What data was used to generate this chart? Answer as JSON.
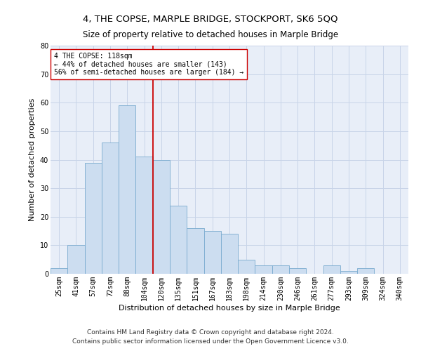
{
  "title": "4, THE COPSE, MARPLE BRIDGE, STOCKPORT, SK6 5QQ",
  "subtitle": "Size of property relative to detached houses in Marple Bridge",
  "xlabel": "Distribution of detached houses by size in Marple Bridge",
  "ylabel": "Number of detached properties",
  "categories": [
    "25sqm",
    "41sqm",
    "57sqm",
    "72sqm",
    "88sqm",
    "104sqm",
    "120sqm",
    "135sqm",
    "151sqm",
    "167sqm",
    "183sqm",
    "198sqm",
    "214sqm",
    "230sqm",
    "246sqm",
    "261sqm",
    "277sqm",
    "293sqm",
    "309sqm",
    "324sqm",
    "340sqm"
  ],
  "values": [
    2,
    10,
    39,
    46,
    59,
    41,
    40,
    24,
    16,
    15,
    14,
    5,
    3,
    3,
    2,
    0,
    3,
    1,
    2,
    0,
    0
  ],
  "bar_color": "#ccddf0",
  "bar_edge_color": "#7aabcf",
  "vline_color": "#cc0000",
  "vline_x_index": 6,
  "ylim": [
    0,
    80
  ],
  "yticks": [
    0,
    10,
    20,
    30,
    40,
    50,
    60,
    70,
    80
  ],
  "annotation_text": "4 THE COPSE: 118sqm\n← 44% of detached houses are smaller (143)\n56% of semi-detached houses are larger (184) →",
  "annotation_box_color": "#ffffff",
  "annotation_box_edge": "#cc0000",
  "footer1": "Contains HM Land Registry data © Crown copyright and database right 2024.",
  "footer2": "Contains public sector information licensed under the Open Government Licence v3.0.",
  "title_fontsize": 9.5,
  "subtitle_fontsize": 8.5,
  "xlabel_fontsize": 8,
  "ylabel_fontsize": 8,
  "tick_fontsize": 7,
  "annotation_fontsize": 7,
  "footer_fontsize": 6.5,
  "background_color": "#ffffff",
  "plot_bg_color": "#e8eef8",
  "grid_color": "#c8d4e8"
}
